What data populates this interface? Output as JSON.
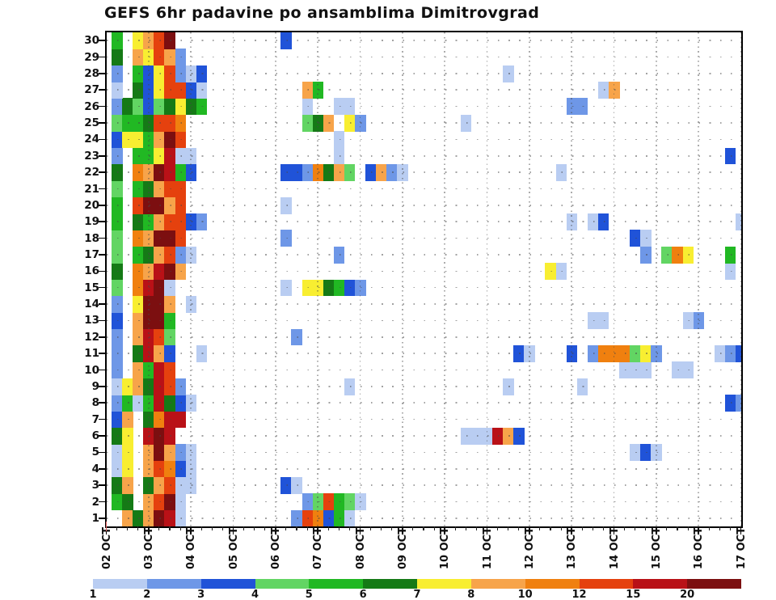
{
  "title": "GEFS 6hr padavine po ansamblima Dimitrovgrad",
  "chart_data": {
    "type": "heatmap",
    "title": "GEFS 6hr padavine po ansamblima Dimitrovgrad",
    "x_meaning": "time in 6-hour steps",
    "y_meaning": "ensemble member",
    "grid": "dotted",
    "legend_position": "bottom",
    "x_tick_labels": [
      "02 OCT",
      "03 OCT",
      "04 OCT",
      "05 OCT",
      "06 OCT",
      "07 OCT",
      "08 OCT",
      "09 OCT",
      "10 OCT",
      "11 OCT",
      "12 OCT",
      "13 OCT",
      "14 OCT",
      "15 OCT",
      "16 OCT",
      "17 OCT"
    ],
    "x_minor_ticks_per_day": 4,
    "y_tick_labels": [
      "1",
      "2",
      "3",
      "4",
      "5",
      "6",
      "7",
      "8",
      "9",
      "10",
      "11",
      "12",
      "13",
      "14",
      "15",
      "16",
      "17",
      "18",
      "19",
      "20",
      "21",
      "22",
      "23",
      "24",
      "25",
      "26",
      "27",
      "28",
      "29",
      "30"
    ],
    "legend_thresholds": [
      "1",
      "2",
      "3",
      "4",
      "5",
      "6",
      "7",
      "8",
      "10",
      "12",
      "15",
      "20"
    ],
    "palette": [
      "#b9cdf2",
      "#6e97e7",
      "#2053d8",
      "#62d563",
      "#21b823",
      "#157a16",
      "#f8ee31",
      "#f7a44a",
      "#f0800f",
      "#e5410e",
      "#b91117",
      "#7c0f10"
    ],
    "cells": {
      "30": [
        [
          1,
          4
        ],
        [
          3,
          6
        ],
        [
          4,
          7
        ],
        [
          5,
          9
        ],
        [
          6,
          11
        ],
        [
          17,
          2
        ]
      ],
      "29": [
        [
          1,
          5
        ],
        [
          3,
          7
        ],
        [
          4,
          6
        ],
        [
          5,
          9
        ],
        [
          6,
          7
        ],
        [
          7,
          1
        ]
      ],
      "28": [
        [
          1,
          1
        ],
        [
          3,
          4
        ],
        [
          4,
          2
        ],
        [
          5,
          6
        ],
        [
          6,
          9
        ],
        [
          7,
          1
        ],
        [
          8,
          0
        ],
        [
          9,
          2
        ],
        [
          38,
          0
        ]
      ],
      "27": [
        [
          1,
          0
        ],
        [
          3,
          5
        ],
        [
          4,
          2
        ],
        [
          5,
          6
        ],
        [
          6,
          9
        ],
        [
          7,
          9
        ],
        [
          8,
          2
        ],
        [
          9,
          0
        ],
        [
          19,
          7
        ],
        [
          20,
          4
        ],
        [
          47,
          0
        ],
        [
          48,
          7
        ]
      ],
      "26": [
        [
          1,
          1
        ],
        [
          2,
          5
        ],
        [
          3,
          3
        ],
        [
          4,
          2
        ],
        [
          5,
          3
        ],
        [
          6,
          5
        ],
        [
          7,
          6
        ],
        [
          8,
          5
        ],
        [
          9,
          4
        ],
        [
          19,
          0
        ],
        [
          22,
          0
        ],
        [
          23,
          0
        ],
        [
          44,
          1
        ],
        [
          45,
          1
        ]
      ],
      "25": [
        [
          1,
          3
        ],
        [
          2,
          4
        ],
        [
          3,
          4
        ],
        [
          4,
          5
        ],
        [
          5,
          9
        ],
        [
          6,
          9
        ],
        [
          7,
          8
        ],
        [
          19,
          3
        ],
        [
          20,
          5
        ],
        [
          21,
          7
        ],
        [
          23,
          6
        ],
        [
          24,
          1
        ],
        [
          34,
          0
        ]
      ],
      "24": [
        [
          1,
          2
        ],
        [
          2,
          6
        ],
        [
          3,
          6
        ],
        [
          4,
          4
        ],
        [
          5,
          7
        ],
        [
          6,
          11
        ],
        [
          7,
          9
        ],
        [
          22,
          0
        ]
      ],
      "23": [
        [
          1,
          1
        ],
        [
          3,
          4
        ],
        [
          4,
          4
        ],
        [
          5,
          6
        ],
        [
          6,
          10
        ],
        [
          7,
          0
        ],
        [
          8,
          0
        ],
        [
          22,
          0
        ],
        [
          59,
          2
        ]
      ],
      "22": [
        [
          1,
          5
        ],
        [
          3,
          8
        ],
        [
          4,
          7
        ],
        [
          5,
          11
        ],
        [
          6,
          10
        ],
        [
          7,
          4
        ],
        [
          8,
          2
        ],
        [
          17,
          2
        ],
        [
          18,
          2
        ],
        [
          19,
          1
        ],
        [
          20,
          8
        ],
        [
          21,
          5
        ],
        [
          22,
          7
        ],
        [
          23,
          3
        ],
        [
          25,
          2
        ],
        [
          26,
          7
        ],
        [
          27,
          1
        ],
        [
          28,
          0
        ],
        [
          43,
          0
        ]
      ],
      "21": [
        [
          1,
          3
        ],
        [
          3,
          4
        ],
        [
          4,
          5
        ],
        [
          5,
          7
        ],
        [
          6,
          9
        ],
        [
          7,
          9
        ]
      ],
      "20": [
        [
          1,
          4
        ],
        [
          3,
          9
        ],
        [
          4,
          11
        ],
        [
          5,
          11
        ],
        [
          6,
          7
        ],
        [
          7,
          9
        ],
        [
          17,
          0
        ]
      ],
      "19": [
        [
          1,
          4
        ],
        [
          3,
          5
        ],
        [
          4,
          4
        ],
        [
          5,
          7
        ],
        [
          6,
          9
        ],
        [
          7,
          9
        ],
        [
          8,
          2
        ],
        [
          9,
          1
        ],
        [
          44,
          0
        ],
        [
          46,
          0
        ],
        [
          47,
          2
        ],
        [
          60,
          0
        ]
      ],
      "18": [
        [
          1,
          3
        ],
        [
          3,
          8
        ],
        [
          4,
          7
        ],
        [
          5,
          11
        ],
        [
          6,
          11
        ],
        [
          7,
          9
        ],
        [
          17,
          1
        ],
        [
          50,
          2
        ],
        [
          51,
          0
        ]
      ],
      "17": [
        [
          1,
          3
        ],
        [
          3,
          4
        ],
        [
          4,
          5
        ],
        [
          5,
          7
        ],
        [
          6,
          9
        ],
        [
          7,
          1
        ],
        [
          8,
          0
        ],
        [
          22,
          1
        ],
        [
          51,
          1
        ],
        [
          53,
          3
        ],
        [
          54,
          8
        ],
        [
          55,
          6
        ],
        [
          59,
          4
        ]
      ],
      "16": [
        [
          1,
          5
        ],
        [
          3,
          8
        ],
        [
          4,
          7
        ],
        [
          5,
          10
        ],
        [
          6,
          11
        ],
        [
          7,
          7
        ],
        [
          42,
          6
        ],
        [
          43,
          0
        ],
        [
          59,
          0
        ]
      ],
      "15": [
        [
          1,
          3
        ],
        [
          3,
          8
        ],
        [
          4,
          10
        ],
        [
          5,
          11
        ],
        [
          6,
          0
        ],
        [
          17,
          0
        ],
        [
          19,
          6
        ],
        [
          20,
          6
        ],
        [
          21,
          5
        ],
        [
          22,
          4
        ],
        [
          23,
          2
        ],
        [
          24,
          1
        ]
      ],
      "14": [
        [
          1,
          1
        ],
        [
          3,
          6
        ],
        [
          4,
          11
        ],
        [
          5,
          11
        ],
        [
          6,
          7
        ],
        [
          8,
          0
        ]
      ],
      "13": [
        [
          1,
          2
        ],
        [
          3,
          7
        ],
        [
          4,
          11
        ],
        [
          5,
          11
        ],
        [
          6,
          4
        ],
        [
          46,
          0
        ],
        [
          47,
          0
        ],
        [
          55,
          0
        ],
        [
          56,
          1
        ]
      ],
      "12": [
        [
          1,
          1
        ],
        [
          3,
          7
        ],
        [
          4,
          10
        ],
        [
          5,
          9
        ],
        [
          6,
          3
        ],
        [
          18,
          1
        ]
      ],
      "11": [
        [
          1,
          1
        ],
        [
          3,
          5
        ],
        [
          4,
          10
        ],
        [
          5,
          7
        ],
        [
          6,
          2
        ],
        [
          9,
          0
        ],
        [
          39,
          2
        ],
        [
          40,
          0
        ],
        [
          44,
          2
        ],
        [
          46,
          1
        ],
        [
          47,
          8
        ],
        [
          48,
          8
        ],
        [
          49,
          8
        ],
        [
          50,
          3
        ],
        [
          51,
          6
        ],
        [
          52,
          1
        ],
        [
          58,
          0
        ],
        [
          59,
          1
        ],
        [
          60,
          2
        ]
      ],
      "10": [
        [
          1,
          1
        ],
        [
          3,
          7
        ],
        [
          4,
          4
        ],
        [
          5,
          10
        ],
        [
          6,
          9
        ],
        [
          49,
          0
        ],
        [
          50,
          0
        ],
        [
          51,
          0
        ],
        [
          54,
          0
        ],
        [
          55,
          0
        ]
      ],
      "9": [
        [
          1,
          0
        ],
        [
          2,
          6
        ],
        [
          3,
          7
        ],
        [
          4,
          5
        ],
        [
          5,
          10
        ],
        [
          6,
          9
        ],
        [
          7,
          1
        ],
        [
          23,
          0
        ],
        [
          38,
          0
        ],
        [
          45,
          0
        ]
      ],
      "8": [
        [
          1,
          1
        ],
        [
          2,
          4
        ],
        [
          3,
          0
        ],
        [
          4,
          4
        ],
        [
          5,
          10
        ],
        [
          6,
          5
        ],
        [
          7,
          2
        ],
        [
          8,
          0
        ],
        [
          59,
          2
        ],
        [
          60,
          1
        ]
      ],
      "7": [
        [
          1,
          2
        ],
        [
          2,
          7
        ],
        [
          4,
          5
        ],
        [
          5,
          8
        ],
        [
          6,
          10
        ],
        [
          7,
          10
        ]
      ],
      "6": [
        [
          1,
          5
        ],
        [
          2,
          6
        ],
        [
          4,
          10
        ],
        [
          5,
          11
        ],
        [
          6,
          10
        ],
        [
          34,
          0
        ],
        [
          35,
          0
        ],
        [
          36,
          0
        ],
        [
          37,
          10
        ],
        [
          38,
          7
        ],
        [
          39,
          2
        ]
      ],
      "5": [
        [
          1,
          0
        ],
        [
          2,
          6
        ],
        [
          4,
          7
        ],
        [
          5,
          11
        ],
        [
          6,
          7
        ],
        [
          7,
          1
        ],
        [
          8,
          0
        ],
        [
          50,
          0
        ],
        [
          51,
          2
        ],
        [
          52,
          0
        ]
      ],
      "4": [
        [
          1,
          0
        ],
        [
          2,
          6
        ],
        [
          4,
          7
        ],
        [
          5,
          9
        ],
        [
          6,
          8
        ],
        [
          7,
          2
        ],
        [
          8,
          0
        ]
      ],
      "3": [
        [
          1,
          5
        ],
        [
          2,
          7
        ],
        [
          4,
          5
        ],
        [
          5,
          7
        ],
        [
          6,
          9
        ],
        [
          7,
          0
        ],
        [
          8,
          0
        ],
        [
          17,
          2
        ],
        [
          18,
          0
        ]
      ],
      "2": [
        [
          1,
          4
        ],
        [
          2,
          5
        ],
        [
          4,
          7
        ],
        [
          5,
          9
        ],
        [
          6,
          11
        ],
        [
          7,
          0
        ],
        [
          19,
          1
        ],
        [
          20,
          3
        ],
        [
          21,
          9
        ],
        [
          22,
          4
        ],
        [
          23,
          3
        ],
        [
          24,
          0
        ]
      ],
      "1": [
        [
          2,
          7
        ],
        [
          3,
          5
        ],
        [
          4,
          7
        ],
        [
          5,
          11
        ],
        [
          6,
          10
        ],
        [
          7,
          0
        ],
        [
          18,
          1
        ],
        [
          19,
          9
        ],
        [
          20,
          8
        ],
        [
          21,
          2
        ],
        [
          22,
          4
        ],
        [
          23,
          0
        ]
      ]
    }
  }
}
